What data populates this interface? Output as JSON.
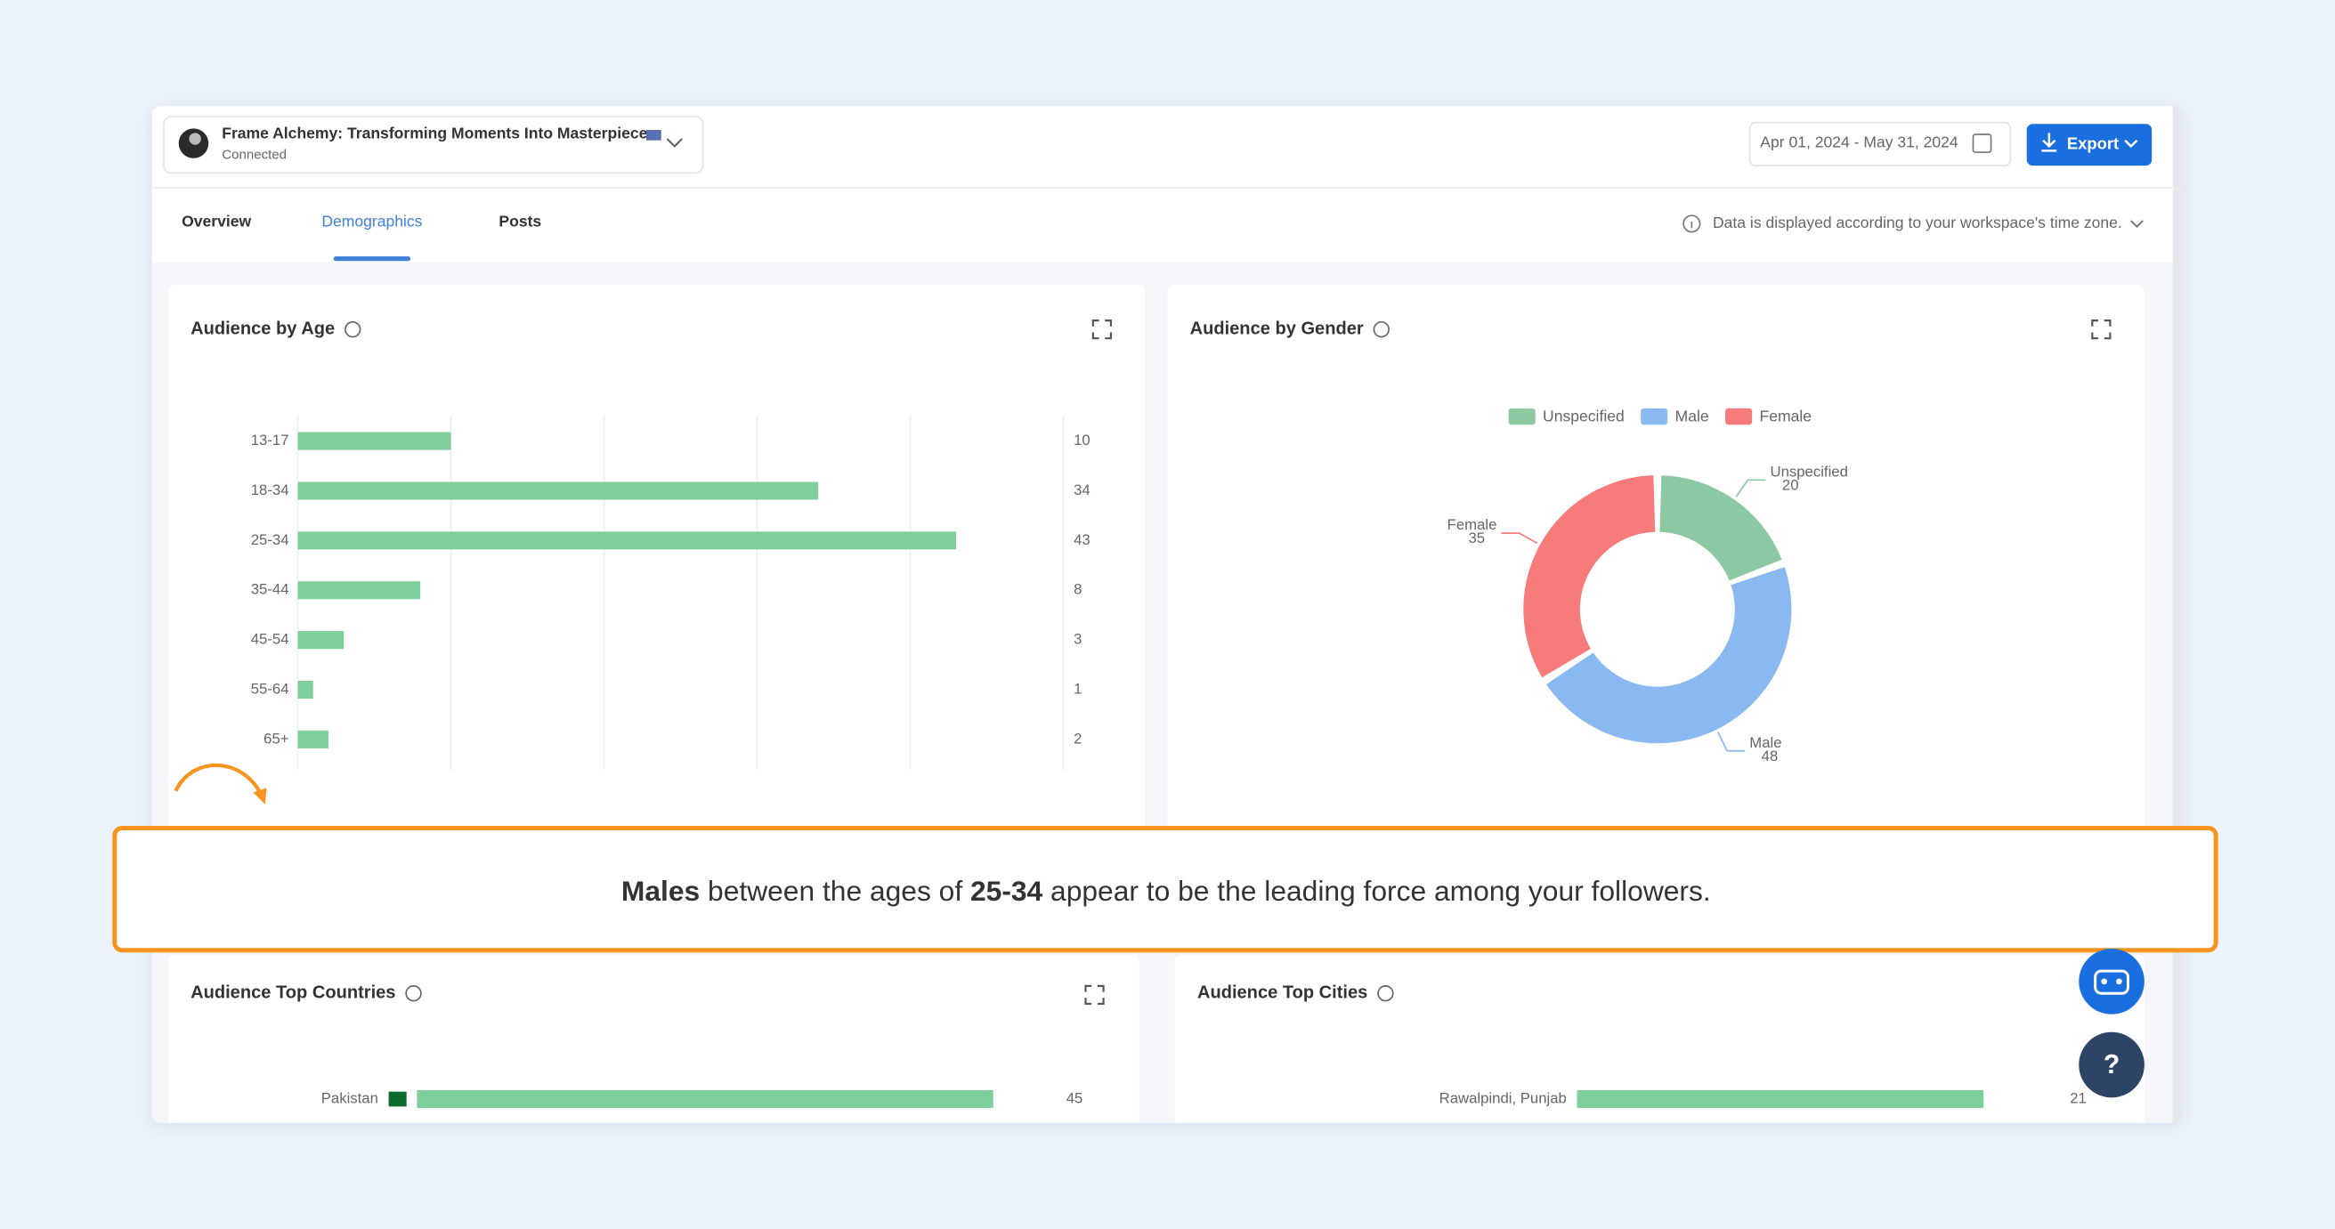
{
  "header": {
    "account_name": "Frame Alchemy: Transforming Moments Into Masterpieces",
    "status": "Connected",
    "date_range": "Apr 01, 2024 - May 31, 2024",
    "export_label": "Export"
  },
  "tabs": [
    "Overview",
    "Demographics",
    "Posts"
  ],
  "active_tab": 1,
  "timezone_note": "Data is displayed according to your workspace's time zone.",
  "chart_data": [
    {
      "type": "bar",
      "orientation": "horizontal",
      "title": "Audience by Age",
      "categories": [
        "13-17",
        "18-34",
        "25-34",
        "35-44",
        "45-54",
        "55-64",
        "65+"
      ],
      "values": [
        10,
        34,
        43,
        8,
        3,
        1,
        2
      ],
      "color": "#7fcf9c",
      "xlim": [
        0,
        50
      ],
      "xticks": [
        0,
        10,
        20,
        30,
        40,
        50
      ],
      "grid": true
    },
    {
      "type": "donut",
      "title": "Audience by Gender",
      "legend": "top",
      "categories": [
        "Unspecified",
        "Male",
        "Female"
      ],
      "values": [
        20,
        48,
        35
      ],
      "colors": [
        "#8cc9a3",
        "#8ab8f0",
        "#f77b7b"
      ]
    },
    {
      "type": "bar",
      "orientation": "horizontal",
      "title": "Audience Top Countries",
      "categories": [
        "Pakistan"
      ],
      "values": [
        45
      ],
      "color": "#7fcf9c",
      "xlim": [
        0,
        50
      ]
    },
    {
      "type": "bar",
      "orientation": "horizontal",
      "title": "Audience Top Cities",
      "categories": [
        "Rawalpindi, Punjab"
      ],
      "values": [
        21
      ],
      "color": "#7fcf9c",
      "xlim": [
        0,
        25
      ]
    }
  ],
  "callout": {
    "parts": [
      "Males",
      " between the ages of ",
      "25-34",
      " appear to be the leading force among your followers."
    ],
    "bold": [
      true,
      false,
      true,
      false
    ]
  },
  "help_button": "?"
}
